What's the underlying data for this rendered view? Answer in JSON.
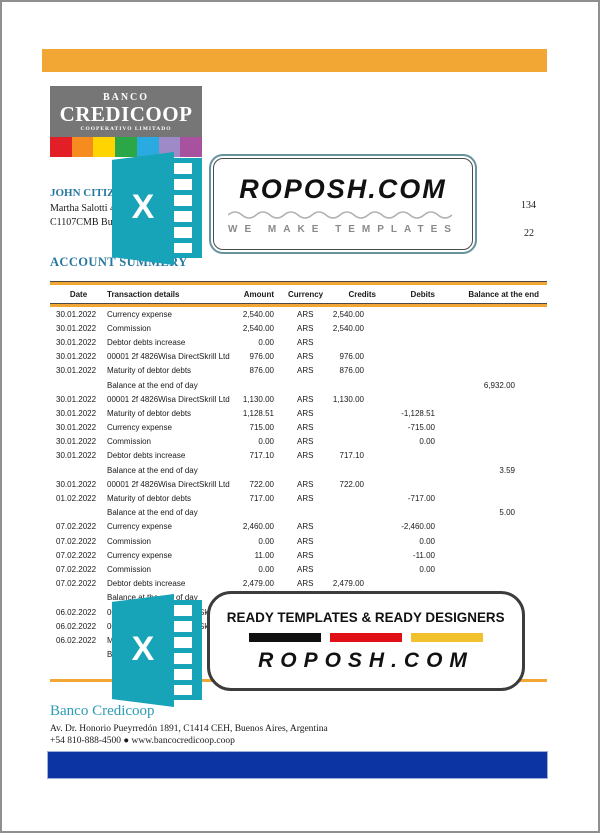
{
  "header": {
    "logo": {
      "line1": "BANCO",
      "line2": "CREDICOOP",
      "line3": "COOPERATIVO LIMITADO"
    },
    "customer": {
      "name": "JOHN CITIZEN",
      "address_line1": "Martha Salotti 44",
      "address_line2": "C1107CMB Buenos Aires Argentina"
    },
    "obscured_fragments": {
      "fragment1": "134",
      "fragment2": "22"
    },
    "section_title": "ACCOUNT SUMMERY"
  },
  "watermarks": {
    "excel_icon_letter": "X",
    "badge_top": {
      "title": "ROPOSH.COM",
      "subtitle": "WE MAKE TEMPLATES"
    },
    "badge_bottom": {
      "title": "READY TEMPLATES & READY DESIGNERS",
      "brand": "ROPOSH.COM"
    }
  },
  "table": {
    "columns": [
      "Date",
      "Transaction details",
      "Amount",
      "Currency",
      "Credits",
      "Debits",
      "Balance at the end"
    ],
    "rows": [
      [
        "30.01.2022",
        "Currency expense",
        "2,540.00",
        "ARS",
        "2,540.00",
        "",
        ""
      ],
      [
        "30.01.2022",
        "Commission",
        "2,540.00",
        "ARS",
        "2,540.00",
        "",
        ""
      ],
      [
        "30.01.2022",
        "Debtor debts increase",
        "0.00",
        "ARS",
        "",
        "",
        ""
      ],
      [
        "30.01.2022",
        "00001 2f 4826Wisa DirectSkrill Ltd",
        "976.00",
        "ARS",
        "976.00",
        "",
        ""
      ],
      [
        "30.01.2022",
        "Maturity of debtor debts",
        "876.00",
        "ARS",
        "876.00",
        "",
        ""
      ],
      [
        "",
        "Balance at the end of day",
        "",
        "",
        "",
        "",
        "6,932.00"
      ],
      [
        "30.01.2022",
        "00001 2f 4826Wisa DirectSkrill Ltd",
        "1,130.00",
        "ARS",
        "1,130.00",
        "",
        ""
      ],
      [
        "30.01.2022",
        "Maturity of debtor debts",
        "1,128.51",
        "ARS",
        "",
        "-1,128.51",
        ""
      ],
      [
        "30.01.2022",
        "Currency expense",
        "715.00",
        "ARS",
        "",
        "-715.00",
        ""
      ],
      [
        "30.01.2022",
        "Commission",
        "0.00",
        "ARS",
        "",
        "0.00",
        ""
      ],
      [
        "30.01.2022",
        "Debtor debts increase",
        "717.10",
        "ARS",
        "717.10",
        "",
        ""
      ],
      [
        "",
        "Balance at the end of day",
        "",
        "",
        "",
        "",
        "3.59"
      ],
      [
        "30.01.2022",
        "00001 2f 4826Wisa DirectSkrill Ltd",
        "722.00",
        "ARS",
        "722.00",
        "",
        ""
      ],
      [
        "01.02.2022",
        "Maturity of debtor debts",
        "717.00",
        "ARS",
        "",
        "-717.00",
        ""
      ],
      [
        "",
        "Balance at the end of day",
        "",
        "",
        "",
        "",
        "5.00"
      ],
      [
        "07.02.2022",
        "Currency expense",
        "2,460.00",
        "ARS",
        "",
        "-2,460.00",
        ""
      ],
      [
        "07.02.2022",
        "Commission",
        "0.00",
        "ARS",
        "",
        "0.00",
        ""
      ],
      [
        "07.02.2022",
        "Currency expense",
        "11.00",
        "ARS",
        "",
        "-11.00",
        ""
      ],
      [
        "07.02.2022",
        "Commission",
        "0.00",
        "ARS",
        "",
        "0.00",
        ""
      ],
      [
        "07.02.2022",
        "Debtor debts increase",
        "2,479.00",
        "ARS",
        "2,479.00",
        "",
        ""
      ],
      [
        "",
        "Balance at the end of day",
        "",
        "",
        "",
        "",
        ""
      ],
      [
        "06.02.2022",
        "00001 2f 4826Wisa DirectSkrill Ltd",
        "",
        "",
        "",
        "",
        ""
      ],
      [
        "06.02.2022",
        "00001 2f 4826Wisa DirectSkrill Ltd",
        "",
        "",
        "",
        "",
        ""
      ],
      [
        "06.02.2022",
        "Maturity of debtor debts",
        "",
        "",
        "",
        "",
        ""
      ],
      [
        "",
        "Balance at the end of day",
        "",
        "",
        "",
        "",
        ""
      ]
    ]
  },
  "footer": {
    "bank_name": "Banco Credicoop",
    "address": "Av. Dr. Honorio Pueyrredón 1891, C1414 CEH, Buenos Aires, Argentina",
    "phone_web": "+54 810-888-4500 ● www.bancocredicoop.coop"
  },
  "colors": {
    "accent_orange": "#F2A633",
    "logo_gray": "#767676",
    "heading_teal": "#2778A0",
    "footer_teal": "#2E9BB5",
    "excel_teal": "#17A3B8",
    "bottom_blue_bar": "#0C35A3",
    "rainbow": [
      "#E21E26",
      "#F68B1F",
      "#FFD400",
      "#2BA747",
      "#29ABE2",
      "#9D8AC6",
      "#A8519F"
    ],
    "badge_bars": [
      "#101010",
      "#E01016",
      "#F2C12E"
    ]
  }
}
